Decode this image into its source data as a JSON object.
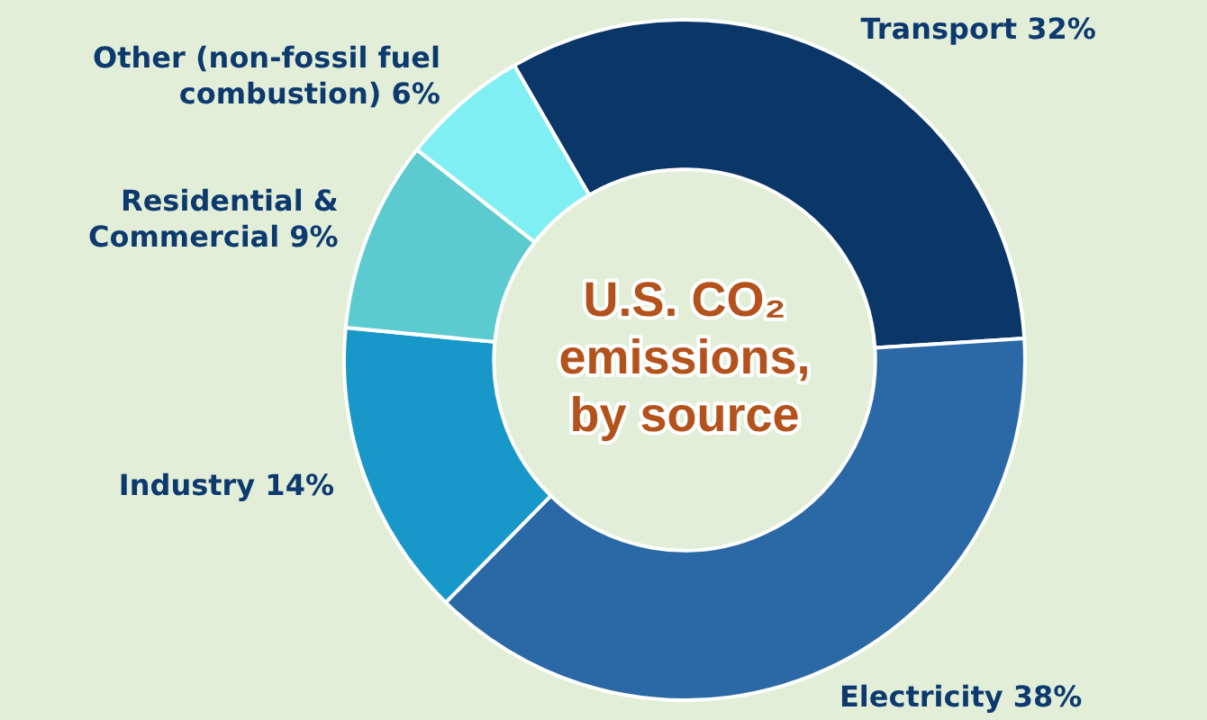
{
  "chart_data": {
    "type": "donut",
    "title": "U.S. CO₂ emissions, by source",
    "categories": [
      "Transport",
      "Electricity",
      "Industry",
      "Residential & Commercial",
      "Other (non-fossil fuel combustion)"
    ],
    "values": [
      32,
      38,
      14,
      9,
      6
    ],
    "value_labels": [
      "32%",
      "38%",
      "14%",
      "9%",
      "6%"
    ],
    "colors": [
      "#0b3668",
      "#2b69a6",
      "#1898c9",
      "#5ccbcf",
      "#80eff4"
    ],
    "legend": false
  }
}
